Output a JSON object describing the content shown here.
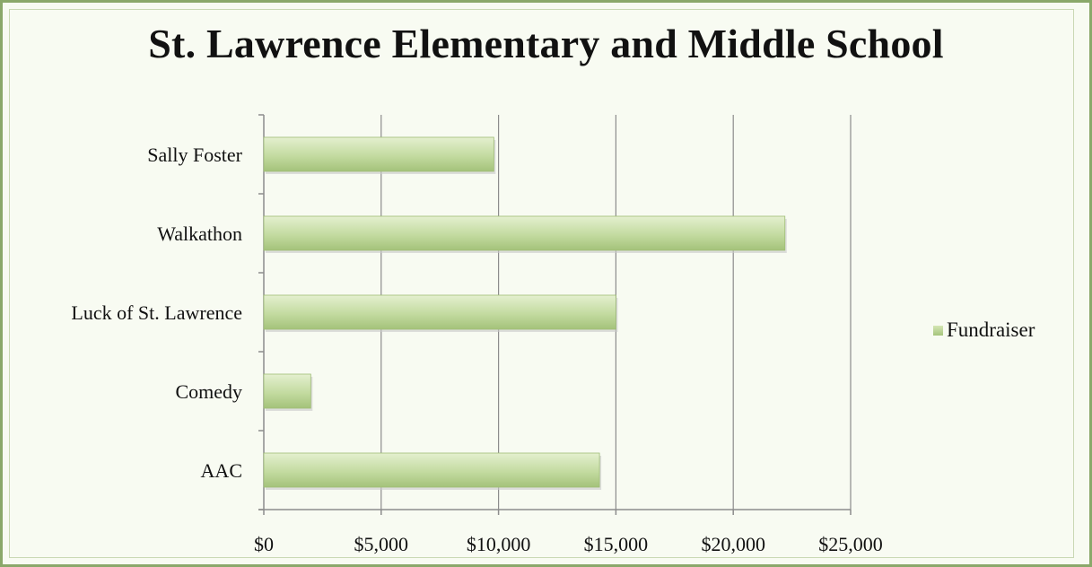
{
  "chart_data": {
    "type": "bar",
    "orientation": "horizontal",
    "title": "St. Lawrence Elementary and Middle School",
    "xlabel": "",
    "ylabel": "",
    "categories": [
      "Sally Foster",
      "Walkathon",
      "Luck of St. Lawrence",
      "Comedy",
      "AAC"
    ],
    "series": [
      {
        "name": "Fundraiser",
        "values": [
          9800,
          22200,
          15000,
          2000,
          14300
        ]
      }
    ],
    "xlim": [
      0,
      25000
    ],
    "x_ticks": [
      0,
      5000,
      10000,
      15000,
      20000,
      25000
    ],
    "x_tick_labels": [
      "$0",
      "$5,000",
      "$10,000",
      "$15,000",
      "$20,000",
      "$25,000"
    ],
    "grid": "vertical major gridlines",
    "legend_position": "right",
    "colors": {
      "bar_light": "#d6e8b8",
      "bar_dark": "#a4c27a",
      "grid": "#8c8c8c",
      "frame": "#8aa86a"
    }
  }
}
